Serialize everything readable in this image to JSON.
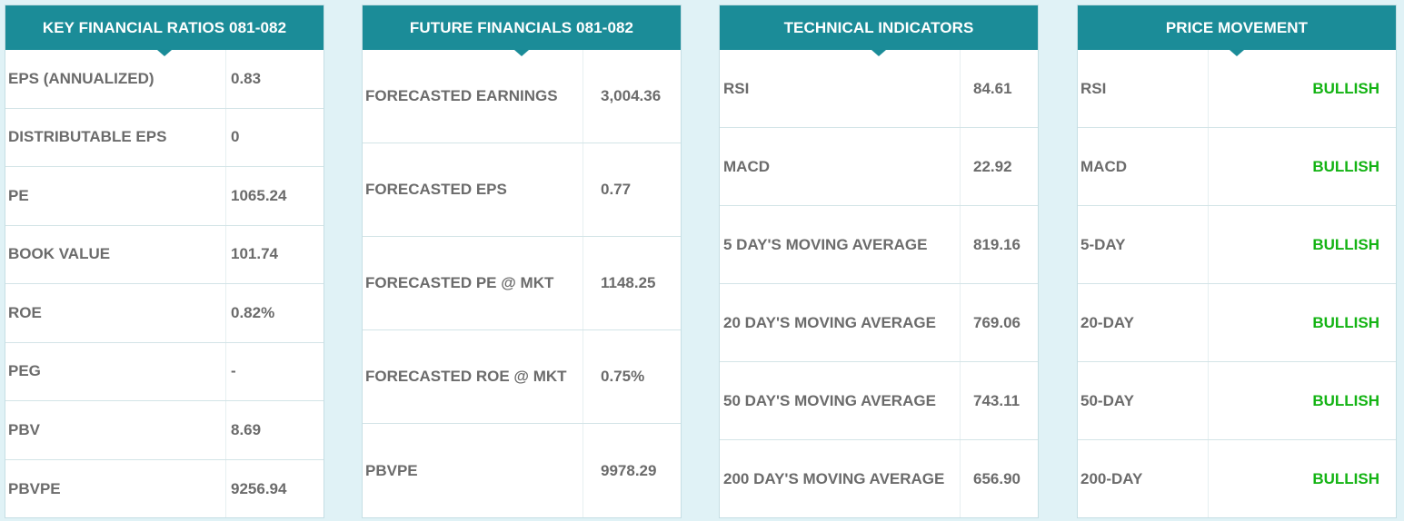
{
  "panels": [
    {
      "title": "KEY FINANCIAL RATIOS 081-082",
      "rows": [
        {
          "label": "EPS (ANNUALIZED)",
          "value": "0.83"
        },
        {
          "label": "DISTRIBUTABLE EPS",
          "value": "0"
        },
        {
          "label": "PE",
          "value": "1065.24"
        },
        {
          "label": "BOOK VALUE",
          "value": "101.74"
        },
        {
          "label": "ROE",
          "value": "0.82%"
        },
        {
          "label": "PEG",
          "value": "-"
        },
        {
          "label": "PBV",
          "value": "8.69"
        },
        {
          "label": "PBVPE",
          "value": "9256.94"
        }
      ]
    },
    {
      "title": "FUTURE FINANCIALS 081-082",
      "rows": [
        {
          "label": "FORECASTED EARNINGS",
          "value": "3,004.36"
        },
        {
          "label": "FORECASTED EPS",
          "value": "0.77"
        },
        {
          "label": "FORECASTED PE @ MKT",
          "value": "1148.25"
        },
        {
          "label": "FORECASTED ROE @ MKT",
          "value": "0.75%"
        },
        {
          "label": "PBVPE",
          "value": "9978.29"
        }
      ]
    },
    {
      "title": "TECHNICAL INDICATORS",
      "rows": [
        {
          "label": "RSI",
          "value": "84.61"
        },
        {
          "label": "MACD",
          "value": "22.92"
        },
        {
          "label": "5 DAY'S MOVING AVERAGE",
          "value": "819.16"
        },
        {
          "label": "20 DAY'S MOVING AVERAGE",
          "value": "769.06"
        },
        {
          "label": "50 DAY'S MOVING AVERAGE",
          "value": "743.11"
        },
        {
          "label": "200 DAY'S MOVING AVERAGE",
          "value": "656.90"
        }
      ]
    },
    {
      "title": "PRICE MOVEMENT",
      "rows": [
        {
          "label": "RSI",
          "value": "BULLISH"
        },
        {
          "label": "MACD",
          "value": "BULLISH"
        },
        {
          "label": "5-DAY",
          "value": "BULLISH"
        },
        {
          "label": "20-DAY",
          "value": "BULLISH"
        },
        {
          "label": "50-DAY",
          "value": "BULLISH"
        },
        {
          "label": "200-DAY",
          "value": "BULLISH"
        }
      ]
    }
  ],
  "colors": {
    "header_bg": "#1b8c98",
    "page_bg": "#e0f2f6",
    "text": "#6b6b6b",
    "bullish": "#13b313"
  }
}
